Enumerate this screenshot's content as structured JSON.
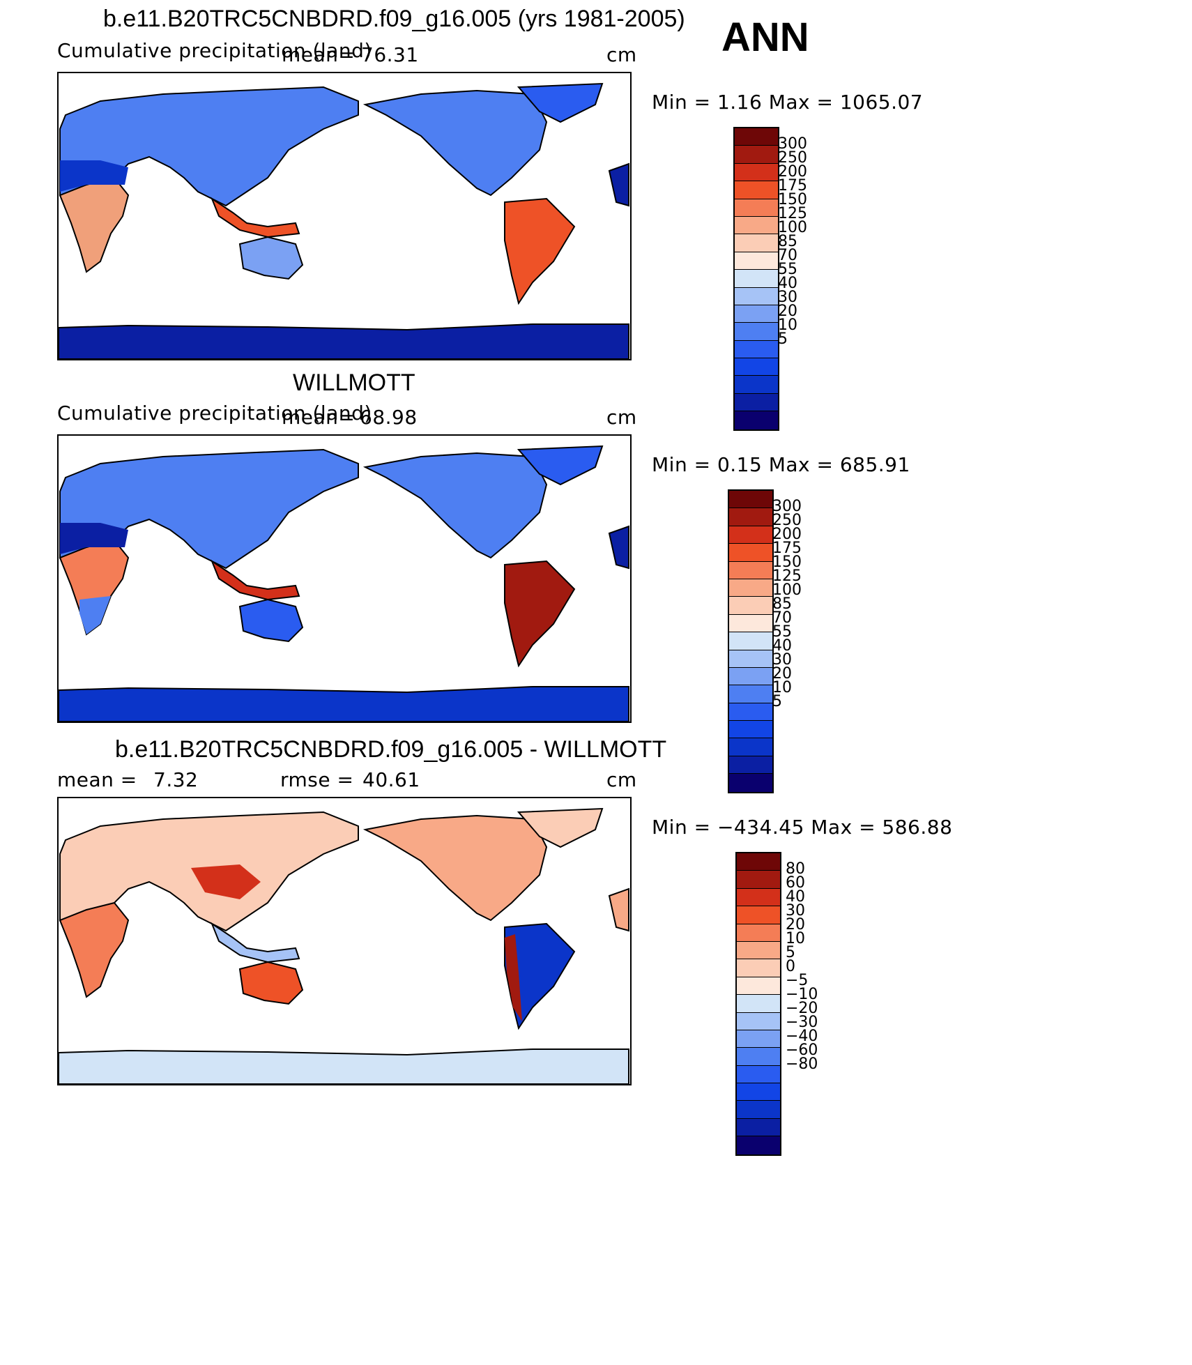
{
  "season": "ANN",
  "colors": {
    "model_scale": [
      "#0a006e",
      "#0b1fa3",
      "#0b35c9",
      "#1245e6",
      "#2a5cf0",
      "#4e7ff2",
      "#7ba1f3",
      "#a6c3f6",
      "#d2e4f7",
      "#fde8dc",
      "#fbcdb6",
      "#f8a987",
      "#f47d56",
      "#ee5227",
      "#d3301a",
      "#a11a10",
      "#6e0707"
    ],
    "diff_scale": [
      "#0a006e",
      "#0b1fa3",
      "#0b35c9",
      "#1245e6",
      "#2a5cf0",
      "#4e7ff2",
      "#7ba1f3",
      "#a6c3f6",
      "#d2e4f7",
      "#fde8dc",
      "#fbcdb6",
      "#f8a987",
      "#f47d56",
      "#ee5227",
      "#d3301a",
      "#a11a10",
      "#6e0707"
    ]
  },
  "panels": [
    {
      "title": "b.e11.B20TRC5CNBDRD.f09_g16.005 (yrs 1981-2005)",
      "left_label": "Cumulative precipitation (land)",
      "mean_label": "mean=",
      "mean_value": "76.31",
      "units": "cm",
      "minmax": "Min =    1.16 Max = 1065.07",
      "colorbar_levels": [
        "300",
        "250",
        "200",
        "175",
        "150",
        "125",
        "100",
        "85",
        "70",
        "55",
        "40",
        "30",
        "20",
        "10",
        "5"
      ]
    },
    {
      "title": "WILLMOTT",
      "left_label": "Cumulative precipitation (land)",
      "mean_label": "mean=",
      "mean_value": "68.98",
      "units": "cm",
      "minmax": "Min =   0.15 Max =  685.91",
      "colorbar_levels": [
        "300",
        "250",
        "200",
        "175",
        "150",
        "125",
        "100",
        "85",
        "70",
        "55",
        "40",
        "30",
        "20",
        "10",
        "5"
      ]
    },
    {
      "title": "b.e11.B20TRC5CNBDRD.f09_g16.005 - WILLMOTT",
      "mean_label": "mean =",
      "mean_value": "7.32",
      "rmse_label": "rmse =",
      "rmse_value": "40.61",
      "units": "cm",
      "minmax": "Min = −434.45 Max =  586.88",
      "colorbar_levels": [
        "80",
        "60",
        "40",
        "30",
        "20",
        "10",
        "5",
        "0",
        "−5",
        "−10",
        "−20",
        "−30",
        "−40",
        "−60",
        "−80"
      ]
    }
  ],
  "chart_data": [
    {
      "type": "heatmap",
      "title": "b.e11.B20TRC5CNBDRD.f09_g16.005 (yrs 1981-2005)",
      "subtitle": "Cumulative precipitation (land)",
      "units": "cm",
      "mean": 76.31,
      "min": 1.16,
      "max": 1065.07,
      "contour_levels": [
        5,
        10,
        20,
        30,
        40,
        55,
        70,
        85,
        100,
        125,
        150,
        175,
        200,
        250,
        300
      ]
    },
    {
      "type": "heatmap",
      "title": "WILLMOTT",
      "subtitle": "Cumulative precipitation (land)",
      "units": "cm",
      "mean": 68.98,
      "min": 0.15,
      "max": 685.91,
      "contour_levels": [
        5,
        10,
        20,
        30,
        40,
        55,
        70,
        85,
        100,
        125,
        150,
        175,
        200,
        250,
        300
      ]
    },
    {
      "type": "heatmap",
      "title": "b.e11.B20TRC5CNBDRD.f09_g16.005 - WILLMOTT",
      "units": "cm",
      "mean": 7.32,
      "rmse": 40.61,
      "min": -434.45,
      "max": 586.88,
      "contour_levels": [
        -80,
        -60,
        -40,
        -30,
        -20,
        -10,
        -5,
        0,
        5,
        10,
        20,
        30,
        40,
        60,
        80
      ]
    }
  ]
}
